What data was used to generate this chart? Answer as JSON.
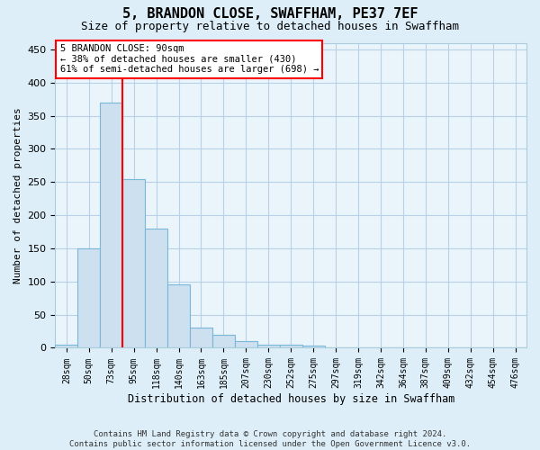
{
  "title": "5, BRANDON CLOSE, SWAFFHAM, PE37 7EF",
  "subtitle": "Size of property relative to detached houses in Swaffham",
  "xlabel": "Distribution of detached houses by size in Swaffham",
  "ylabel": "Number of detached properties",
  "footer": "Contains HM Land Registry data © Crown copyright and database right 2024.\nContains public sector information licensed under the Open Government Licence v3.0.",
  "bar_labels": [
    "28sqm",
    "50sqm",
    "73sqm",
    "95sqm",
    "118sqm",
    "140sqm",
    "163sqm",
    "185sqm",
    "207sqm",
    "230sqm",
    "252sqm",
    "275sqm",
    "297sqm",
    "319sqm",
    "342sqm",
    "364sqm",
    "387sqm",
    "409sqm",
    "432sqm",
    "454sqm",
    "476sqm"
  ],
  "bar_values": [
    5,
    150,
    370,
    255,
    180,
    95,
    30,
    20,
    10,
    5,
    5,
    3,
    1,
    1,
    0,
    0,
    1,
    0,
    0,
    0,
    0
  ],
  "bar_color": "#cce0f0",
  "bar_edge_color": "#7ab8d9",
  "property_line_x": 2.5,
  "property_line_color": "red",
  "annotation_text": "5 BRANDON CLOSE: 90sqm\n← 38% of detached houses are smaller (430)\n61% of semi-detached houses are larger (698) →",
  "annotation_box_color": "white",
  "annotation_box_edge": "red",
  "ylim": [
    0,
    460
  ],
  "yticks": [
    0,
    50,
    100,
    150,
    200,
    250,
    300,
    350,
    400,
    450
  ],
  "grid_color": "#b8d0e8",
  "background_color": "#ddeef8",
  "plot_bg_color": "#eaf4fb",
  "title_fontsize": 11,
  "subtitle_fontsize": 9,
  "footer_fontsize": 6.5
}
